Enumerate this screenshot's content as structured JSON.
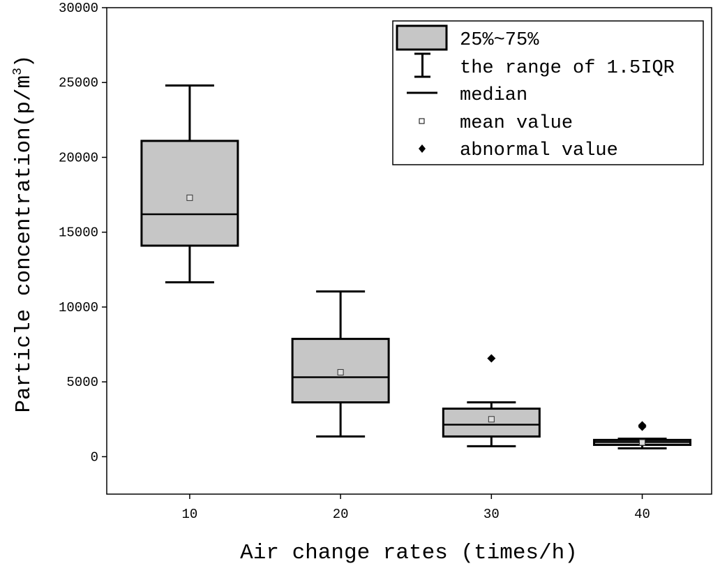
{
  "chart_data": {
    "type": "box",
    "xlabel": "Air change rates (times/h)",
    "ylabel_main": "Particle concentration(p/m",
    "ylabel_sup": "3",
    "ylabel_end": ")",
    "ylim": [
      -2500,
      30000
    ],
    "xlim": [
      4.5,
      44.6
    ],
    "yticks": [
      0,
      5000,
      10000,
      15000,
      20000,
      25000,
      30000
    ],
    "xticks": [
      10,
      20,
      30,
      40
    ],
    "grid": false,
    "box_fill": "#c6c6c6",
    "boxes": [
      {
        "x": 10,
        "whisker_low": 11650,
        "q1": 14100,
        "median": 16200,
        "q3": 21100,
        "whisker_high": 24800,
        "mean": 17300,
        "outliers": []
      },
      {
        "x": 20,
        "whisker_low": 1350,
        "q1": 3630,
        "median": 5310,
        "q3": 7870,
        "whisker_high": 11040,
        "mean": 5640,
        "outliers": []
      },
      {
        "x": 30,
        "whisker_low": 700,
        "q1": 1350,
        "median": 2140,
        "q3": 3210,
        "whisker_high": 3630,
        "mean": 2500,
        "outliers": [
          6570
        ]
      },
      {
        "x": 40,
        "whisker_low": 560,
        "q1": 790,
        "median": 980,
        "q3": 1120,
        "whisker_high": 1200,
        "mean": 950,
        "outliers": [
          2000,
          2100
        ]
      }
    ],
    "legend": {
      "placement": "top-right",
      "entries": [
        "25%~75%",
        "the range of 1.5IQR",
        "median",
        "mean value",
        "abnormal value"
      ]
    }
  }
}
